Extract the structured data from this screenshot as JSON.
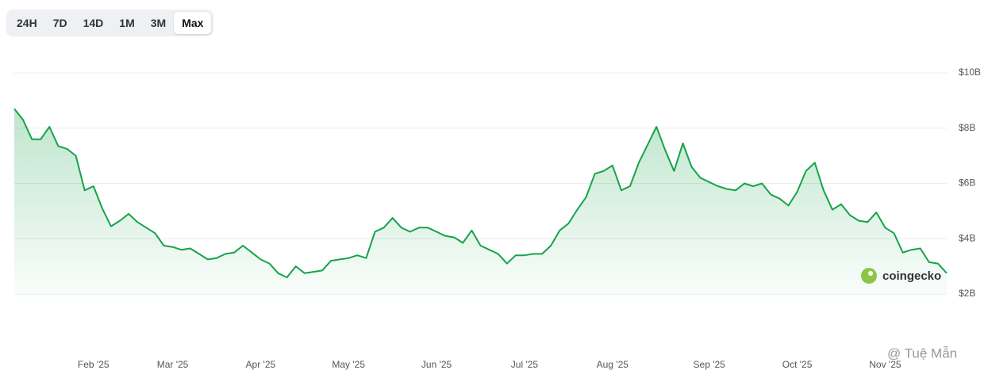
{
  "range_buttons": [
    "24H",
    "7D",
    "14D",
    "1M",
    "3M",
    "Max"
  ],
  "selected_range": 5,
  "chart_data": {
    "type": "line",
    "color": "#16a34a",
    "fill": true,
    "grid": true,
    "y_axis_side": "right",
    "categories": [
      null,
      null,
      null,
      null,
      null,
      null,
      null,
      null,
      null,
      "Feb '25",
      null,
      null,
      null,
      null,
      null,
      null,
      null,
      null,
      "Mar '25",
      null,
      null,
      null,
      null,
      null,
      null,
      null,
      null,
      null,
      "Apr '25",
      null,
      null,
      null,
      null,
      null,
      null,
      null,
      null,
      null,
      "May '25",
      null,
      null,
      null,
      null,
      null,
      null,
      null,
      null,
      null,
      "Jun '25",
      null,
      null,
      null,
      null,
      null,
      null,
      null,
      null,
      null,
      "Jul '25",
      null,
      null,
      null,
      null,
      null,
      null,
      null,
      null,
      null,
      "Aug '25",
      null,
      null,
      null,
      null,
      null,
      null,
      null,
      null,
      null,
      null,
      "Sep '25",
      null,
      null,
      null,
      null,
      null,
      null,
      null,
      null,
      null,
      "Oct '25",
      null,
      null,
      null,
      null,
      null,
      null,
      null,
      null,
      null,
      "Nov '25",
      null,
      null,
      null,
      null,
      null,
      null,
      null
    ],
    "values": [
      8.7,
      8.3,
      7.6,
      7.6,
      8.05,
      7.35,
      7.25,
      7.0,
      5.75,
      5.9,
      5.1,
      4.45,
      4.65,
      4.9,
      4.6,
      4.4,
      4.2,
      3.75,
      3.7,
      3.6,
      3.65,
      3.45,
      3.25,
      3.3,
      3.45,
      3.5,
      3.75,
      3.5,
      3.25,
      3.1,
      2.75,
      2.6,
      3.0,
      2.75,
      2.8,
      2.85,
      3.2,
      3.25,
      3.3,
      3.4,
      3.3,
      4.25,
      4.4,
      4.75,
      4.4,
      4.25,
      4.4,
      4.4,
      4.25,
      4.1,
      4.05,
      3.85,
      4.3,
      3.75,
      3.6,
      3.45,
      3.1,
      3.4,
      3.4,
      3.45,
      3.45,
      3.75,
      4.3,
      4.55,
      5.05,
      5.5,
      6.35,
      6.45,
      6.65,
      5.75,
      5.9,
      6.75,
      7.4,
      8.05,
      7.2,
      6.45,
      7.45,
      6.6,
      6.2,
      6.05,
      5.9,
      5.8,
      5.75,
      6.0,
      5.9,
      6.0,
      5.6,
      5.45,
      5.2,
      5.7,
      6.45,
      6.75,
      5.75,
      5.05,
      5.25,
      4.85,
      4.65,
      4.6,
      4.95,
      4.4,
      4.2,
      3.5,
      3.6,
      3.65,
      3.15,
      3.1,
      2.75
    ],
    "ylim": [
      2,
      10
    ],
    "yticks": [
      {
        "value": 2,
        "label": "$2B"
      },
      {
        "value": 4,
        "label": "$4B"
      },
      {
        "value": 6,
        "label": "$6B"
      },
      {
        "value": 8,
        "label": "$8B"
      },
      {
        "value": 10,
        "label": "$10B"
      }
    ]
  },
  "watermarks": [
    "coingecko",
    "@ Tuệ Mẫn"
  ]
}
